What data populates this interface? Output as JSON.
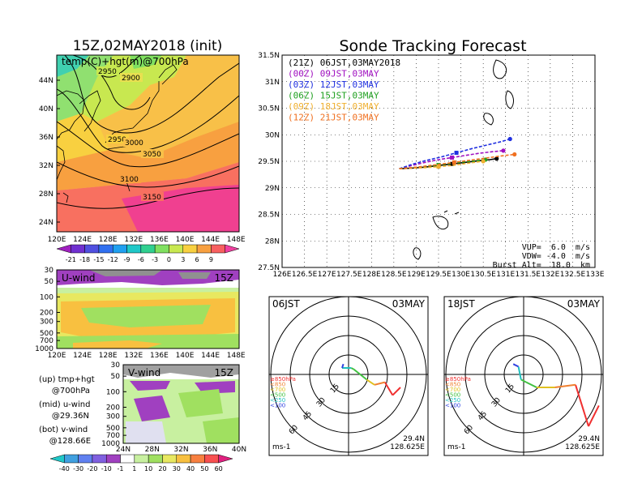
{
  "left": {
    "title": "15Z,02MAY2018 (init)",
    "map_label": "temp(C)+hgt(m)@700hPa",
    "map_lat_ticks": [
      "44N",
      "40N",
      "36N",
      "32N",
      "28N",
      "24N"
    ],
    "map_lon_ticks": [
      "120E",
      "124E",
      "128E",
      "132E",
      "136E",
      "140E",
      "144E",
      "148E"
    ],
    "contours": [
      "2900",
      "2950",
      "2950",
      "3000",
      "3050",
      "3100",
      "3150"
    ],
    "temp_scale": [
      "-21",
      "-18",
      "-15",
      "-12",
      "-9",
      "-6",
      "-3",
      "0",
      "3",
      "6",
      "9"
    ],
    "temp_colors": [
      "#a020c0",
      "#7030d0",
      "#5050e0",
      "#3070f0",
      "#20a0f0",
      "#20c8c8",
      "#30d090",
      "#80e060",
      "#c8e850",
      "#f8d040",
      "#f8a040",
      "#f86060",
      "#f040a0"
    ],
    "uwind_label": "U-wind",
    "uwind_time": "15Z",
    "vwind_label": "V-wind",
    "vwind_time": "15Z",
    "p_ticks": [
      "30",
      "50",
      "100",
      "200",
      "300",
      "500",
      "700",
      "1000"
    ],
    "v_lat_ticks": [
      "24N",
      "28N",
      "32N",
      "36N",
      "40N"
    ],
    "wind_scale": [
      "-40",
      "-30",
      "-20",
      "-10",
      "-1",
      "1",
      "10",
      "20",
      "30",
      "40",
      "50",
      "60"
    ],
    "wind_colors": [
      "#20c8c8",
      "#40a0e0",
      "#6080f0",
      "#8060e0",
      "#a040c0",
      "#ffffff",
      "#c8f0a0",
      "#a0e060",
      "#e8e860",
      "#f8c040",
      "#f88040",
      "#f85050",
      "#e02080"
    ],
    "legend_lines": [
      [
        "(up) tmp+hgt",
        "     @700hPa"
      ],
      [
        "(mid) u-wind",
        "     @29.36N"
      ],
      [
        "(bot) v-wind",
        "    @128.66E"
      ]
    ]
  },
  "chart_data": [
    {
      "type": "line",
      "title": "Sonde Tracking Forecast",
      "xlim": [
        126,
        133
      ],
      "ylim": [
        27.5,
        31.5
      ],
      "x_ticks": [
        "126E",
        "126.5E",
        "127E",
        "127.5E",
        "128E",
        "128.5E",
        "129E",
        "129.5E",
        "130E",
        "130.5E",
        "131E",
        "131.5E",
        "132E",
        "132.5E",
        "133E"
      ],
      "y_ticks": [
        "27.5N",
        "28N",
        "28.5N",
        "29N",
        "29.5N",
        "30N",
        "30.5N",
        "31N",
        "31.5N"
      ],
      "grid": true,
      "legend_position": "top-left",
      "series": [
        {
          "name": "(21Z)  06JST,03MAY2018",
          "color": "#000000",
          "x": [
            128.62,
            128.9,
            129.2,
            129.5,
            129.8,
            130.1,
            130.4,
            130.65,
            130.8
          ],
          "y": [
            29.36,
            29.37,
            29.39,
            29.42,
            29.45,
            29.48,
            29.51,
            29.53,
            29.55
          ]
        },
        {
          "name": "(00Z)  09JST,03MAY",
          "color": "#a010c0",
          "x": [
            128.62,
            128.9,
            129.2,
            129.5,
            129.8,
            130.1,
            130.4,
            130.7,
            130.95
          ],
          "y": [
            29.36,
            29.42,
            29.48,
            29.53,
            29.57,
            29.61,
            29.65,
            29.68,
            29.7
          ]
        },
        {
          "name": "(03Z)  12JST,03MAY",
          "color": "#2030e0",
          "x": [
            128.62,
            128.9,
            129.2,
            129.55,
            129.9,
            130.25,
            130.6,
            130.9,
            131.1
          ],
          "y": [
            29.36,
            29.44,
            29.51,
            29.58,
            29.66,
            29.74,
            29.81,
            29.87,
            29.92
          ]
        },
        {
          "name": "(06Z)  15JST,03MAY",
          "color": "#20a020",
          "x": [
            128.62,
            128.9,
            129.2,
            129.5,
            129.8,
            130.1,
            130.35,
            130.55
          ],
          "y": [
            29.36,
            29.38,
            29.4,
            29.43,
            29.46,
            29.49,
            29.51,
            29.53
          ]
        },
        {
          "name": "(09Z)  18JST,03MAY",
          "color": "#f0b030",
          "x": [
            128.62,
            128.9,
            129.2,
            129.5,
            129.8,
            130.05,
            130.3,
            130.5
          ],
          "y": [
            29.36,
            29.37,
            29.38,
            29.4,
            29.42,
            29.45,
            29.48,
            29.5
          ]
        },
        {
          "name": "(12Z)  21JST,03MAY",
          "color": "#f07020",
          "x": [
            128.62,
            128.9,
            129.2,
            129.5,
            129.85,
            130.2,
            130.55,
            130.9,
            131.2
          ],
          "y": [
            29.36,
            29.38,
            29.41,
            29.44,
            29.48,
            29.52,
            29.56,
            29.6,
            29.63
          ]
        }
      ],
      "annotations": [
        "VUP=  6.0  m/s",
        "VDW= -4.0  m/s",
        "Burst Alt=  18.0  km"
      ]
    }
  ],
  "polar": [
    {
      "time": "06JST",
      "date": "03MAY",
      "lat": "29.4N",
      "lon": "128.625E",
      "unit": "ms-1",
      "ring_labels": [
        "15",
        "30",
        "45",
        "60"
      ],
      "p_legend": [
        "≥850hPa",
        "<850",
        "<700",
        "<500",
        "<250",
        "<100"
      ],
      "p_colors": [
        "#f03030",
        "#f08030",
        "#e0c020",
        "#40c040",
        "#20c0c0",
        "#3040e0"
      ],
      "hodo": [
        [
          40,
          -10
        ],
        [
          34,
          -16
        ],
        [
          28,
          -6
        ],
        [
          20,
          -8
        ],
        [
          14,
          -4
        ],
        [
          4,
          4
        ],
        [
          2,
          5
        ],
        [
          -5,
          5
        ],
        [
          -4,
          8
        ]
      ]
    },
    {
      "time": "18JST",
      "date": "03MAY",
      "lat": "29.4N",
      "lon": "128.625E",
      "unit": "ms-1",
      "ring_labels": [
        "15",
        "30",
        "45",
        "60"
      ],
      "p_legend": [
        "≥850hPa",
        "<850",
        "<700",
        "<500",
        "<250",
        "<100"
      ],
      "p_colors": [
        "#f03030",
        "#f08030",
        "#e0c020",
        "#40c040",
        "#20c0c0",
        "#3040e0"
      ],
      "hodo": [
        [
          58,
          -24
        ],
        [
          50,
          -40
        ],
        [
          40,
          -8
        ],
        [
          24,
          -10
        ],
        [
          10,
          -10
        ],
        [
          2,
          -6
        ],
        [
          -2,
          -4
        ],
        [
          -4,
          6
        ],
        [
          -8,
          8
        ]
      ]
    }
  ]
}
